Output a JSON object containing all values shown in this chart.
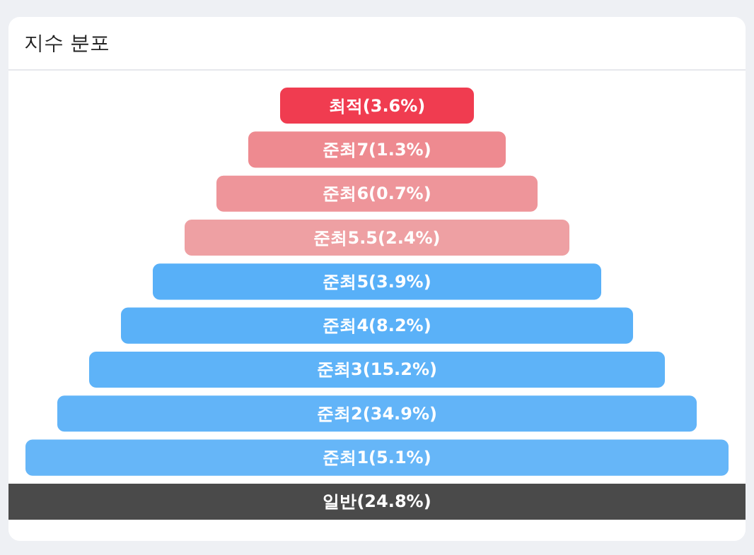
{
  "chart_data": {
    "type": "other",
    "title": "지수 분포",
    "categories": [
      "최적",
      "준최7",
      "준최6",
      "준최5.5",
      "준최5",
      "준최4",
      "준최3",
      "준최2",
      "준최1",
      "일반"
    ],
    "values": [
      3.6,
      1.3,
      0.7,
      2.4,
      3.9,
      8.2,
      15.2,
      34.9,
      5.1,
      24.8
    ],
    "value_labels": [
      "(3.6%)",
      "(1.3%)",
      "(0.7%)",
      "(2.4%)",
      "(3.9%)",
      "(8.2%)",
      "(15.2%)",
      "(34.9%)",
      "(5.1%)",
      "(24.8%)"
    ],
    "colors": [
      "#f03c50",
      "#ee8a90",
      "#ee959a",
      "#eea0a3",
      "#58b0f8",
      "#5ab1f8",
      "#5eb3f8",
      "#62b4f8",
      "#66b6f8",
      "#4a4a4a"
    ]
  }
}
